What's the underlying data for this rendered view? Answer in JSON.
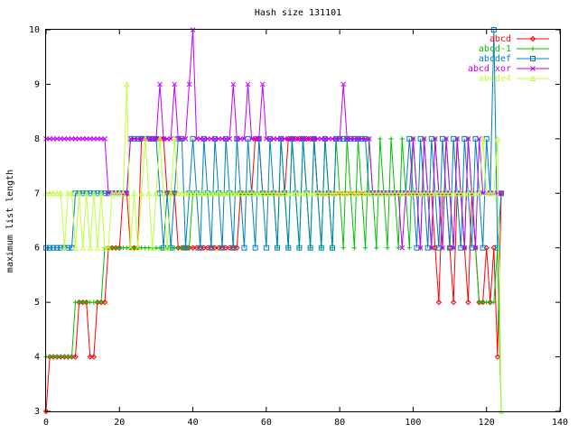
{
  "chart_data": {
    "type": "line",
    "title": "Hash size 131101",
    "xlabel": "",
    "ylabel": "maximum list length",
    "xlim": [
      0,
      140
    ],
    "ylim": [
      3,
      10
    ],
    "xticks": [
      0,
      20,
      40,
      60,
      80,
      100,
      120,
      140
    ],
    "yticks": [
      3,
      4,
      5,
      6,
      7,
      8,
      9,
      10
    ],
    "grid": false,
    "legend": "top-right",
    "series": [
      {
        "name": "abcd",
        "color": "#ff0000",
        "marker": "diamond",
        "values": [
          3,
          4,
          4,
          4,
          4,
          4,
          4,
          4,
          4,
          5,
          5,
          5,
          4,
          4,
          5,
          5,
          5,
          6,
          6,
          6,
          6,
          7,
          7,
          6,
          6,
          6,
          8,
          8,
          8,
          8,
          8,
          8,
          8,
          7,
          7,
          7,
          6,
          6,
          6,
          6,
          6,
          6,
          6,
          6,
          6,
          6,
          6,
          6,
          6,
          6,
          6,
          6,
          6,
          7,
          7,
          7,
          7,
          8,
          8,
          7,
          7,
          7,
          7,
          7,
          7,
          7,
          8,
          8,
          8,
          8,
          8,
          8,
          8,
          8,
          7,
          7,
          7,
          7,
          7,
          7,
          7,
          7,
          7,
          7,
          7,
          7,
          7,
          7,
          7,
          7,
          7,
          7,
          7,
          7,
          7,
          7,
          7,
          7,
          7,
          7,
          7,
          7,
          7,
          7,
          7,
          7,
          6,
          5,
          7,
          7,
          6,
          5,
          7,
          7,
          6,
          5,
          7,
          6,
          5,
          5,
          6,
          5,
          6,
          4,
          7
        ]
      },
      {
        "name": "abcd-1",
        "color": "#00c000",
        "marker": "plus",
        "values": [
          4,
          4,
          4,
          4,
          4,
          4,
          4,
          4,
          5,
          5,
          5,
          5,
          5,
          5,
          5,
          5,
          6,
          6,
          6,
          6,
          6,
          6,
          6,
          6,
          6,
          6,
          6,
          6,
          6,
          6,
          6,
          6,
          6,
          6,
          6,
          6,
          6,
          6,
          6,
          6,
          7,
          7,
          7,
          7,
          7,
          7,
          7,
          7,
          7,
          7,
          7,
          7,
          7,
          7,
          7,
          7,
          7,
          7,
          7,
          7,
          7,
          7,
          7,
          6,
          8,
          7,
          6,
          8,
          7,
          6,
          8,
          7,
          6,
          8,
          7,
          6,
          8,
          7,
          6,
          8,
          7,
          6,
          8,
          7,
          6,
          8,
          7,
          6,
          8,
          7,
          6,
          8,
          7,
          6,
          8,
          7,
          6,
          8,
          7,
          6,
          8,
          7,
          6,
          8,
          7,
          6,
          8,
          7,
          6,
          8,
          7,
          6,
          8,
          7,
          6,
          8,
          7,
          6,
          5,
          5,
          5,
          5,
          5,
          6,
          3
        ]
      },
      {
        "name": "abcdef",
        "color": "#0080c0",
        "marker": "square",
        "values": [
          6,
          6,
          6,
          6,
          6,
          6,
          6,
          6,
          7,
          7,
          7,
          7,
          7,
          7,
          7,
          7,
          7,
          7,
          7,
          7,
          7,
          7,
          7,
          8,
          8,
          8,
          8,
          8,
          8,
          8,
          8,
          7,
          6,
          7,
          6,
          7,
          8,
          8,
          6,
          7,
          8,
          7,
          6,
          8,
          7,
          6,
          8,
          7,
          6,
          8,
          7,
          6,
          8,
          7,
          6,
          8,
          7,
          6,
          8,
          7,
          6,
          8,
          7,
          6,
          8,
          7,
          6,
          8,
          7,
          6,
          8,
          7,
          6,
          8,
          7,
          6,
          8,
          7,
          6,
          8,
          8,
          8,
          8,
          8,
          8,
          8,
          8,
          8,
          7,
          7,
          7,
          7,
          7,
          7,
          7,
          7,
          7,
          7,
          7,
          8,
          7,
          6,
          8,
          7,
          6,
          8,
          7,
          6,
          8,
          7,
          6,
          8,
          7,
          6,
          8,
          7,
          6,
          8,
          7,
          6,
          8,
          7,
          10,
          6,
          7
        ]
      },
      {
        "name": "abcd xor",
        "color": "#c000ff",
        "marker": "cross",
        "values": [
          8,
          8,
          8,
          8,
          8,
          8,
          8,
          8,
          8,
          8,
          8,
          8,
          8,
          8,
          8,
          8,
          8,
          7,
          7,
          7,
          7,
          7,
          7,
          8,
          8,
          8,
          8,
          8,
          8,
          8,
          8,
          9,
          8,
          8,
          8,
          9,
          8,
          8,
          8,
          9,
          10,
          8,
          8,
          8,
          8,
          8,
          8,
          8,
          8,
          8,
          8,
          9,
          8,
          8,
          8,
          9,
          8,
          8,
          8,
          9,
          8,
          8,
          8,
          8,
          8,
          8,
          8,
          8,
          8,
          8,
          8,
          8,
          8,
          8,
          8,
          8,
          8,
          8,
          8,
          8,
          8,
          9,
          8,
          8,
          8,
          8,
          8,
          8,
          8,
          7,
          7,
          7,
          7,
          7,
          7,
          7,
          7,
          6,
          7,
          7,
          8,
          7,
          6,
          8,
          7,
          6,
          8,
          7,
          6,
          8,
          7,
          6,
          8,
          7,
          6,
          8,
          7,
          6,
          8,
          7,
          7,
          7,
          7,
          7,
          7
        ]
      },
      {
        "name": "abcde4",
        "color": "#c0ff40",
        "marker": "triangle",
        "values": [
          7,
          7,
          7,
          7,
          7,
          6,
          7,
          7,
          6,
          7,
          6,
          7,
          6,
          7,
          6,
          7,
          6,
          6,
          7,
          7,
          7,
          7,
          9,
          6,
          7,
          6,
          7,
          8,
          7,
          6,
          7,
          8,
          7,
          6,
          7,
          8,
          7,
          7,
          7,
          7,
          7,
          7,
          7,
          7,
          7,
          7,
          7,
          7,
          7,
          7,
          7,
          7,
          7,
          7,
          7,
          7,
          7,
          7,
          7,
          7,
          7,
          7,
          7,
          7,
          7,
          7,
          7,
          7,
          7,
          7,
          7,
          7,
          7,
          7,
          7,
          7,
          7,
          7,
          7,
          7,
          7,
          7,
          7,
          7,
          7,
          7,
          7,
          7,
          7,
          7,
          7,
          7,
          7,
          7,
          7,
          7,
          7,
          7,
          7,
          7,
          7,
          7,
          7,
          7,
          7,
          7,
          7,
          7,
          7,
          7,
          7,
          7,
          7,
          7,
          7,
          7,
          7,
          7,
          7,
          8,
          7,
          7,
          7,
          8,
          3
        ]
      }
    ]
  }
}
